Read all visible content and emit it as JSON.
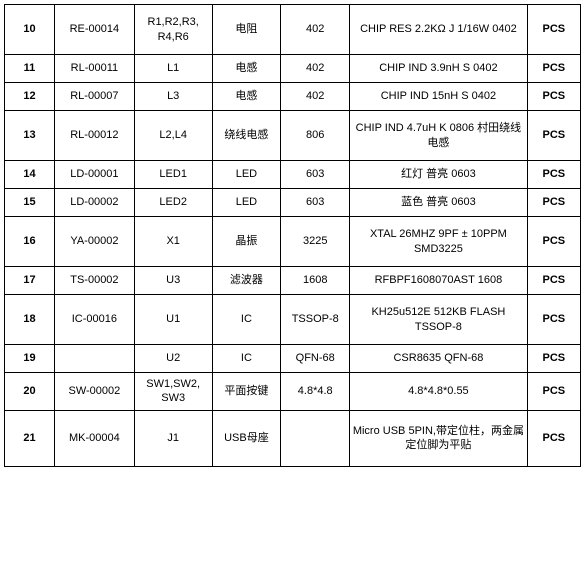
{
  "table": {
    "columns": [
      {
        "key": "idx",
        "class": "col-idx"
      },
      {
        "key": "partno",
        "class": "col-partno"
      },
      {
        "key": "ref",
        "class": "col-ref"
      },
      {
        "key": "type",
        "class": "col-type"
      },
      {
        "key": "pkg",
        "class": "col-pkg"
      },
      {
        "key": "desc",
        "class": "col-desc"
      },
      {
        "key": "unit",
        "class": "col-unit"
      }
    ],
    "rows": [
      {
        "height": "row-tall",
        "idx": "10",
        "partno": "RE-00014",
        "ref": "R1,R2,R3,\nR4,R6",
        "type": "电阻",
        "pkg": "402",
        "desc": "CHIP RES 2.2KΩ J 1/16W 0402",
        "unit": "PCS"
      },
      {
        "height": "row-short",
        "idx": "11",
        "partno": "RL-00011",
        "ref": "L1",
        "type": "电感",
        "pkg": "402",
        "desc": "CHIP IND 3.9nH S 0402",
        "unit": "PCS"
      },
      {
        "height": "row-short",
        "idx": "12",
        "partno": "RL-00007",
        "ref": "L3",
        "type": "电感",
        "pkg": "402",
        "desc": "CHIP IND 15nH S 0402",
        "unit": "PCS"
      },
      {
        "height": "row-tall",
        "idx": "13",
        "partno": "RL-00012",
        "ref": "L2,L4",
        "type": "绕线电感",
        "pkg": "806",
        "desc": "CHIP IND 4.7uH K 0806 村田绕线电感",
        "unit": "PCS"
      },
      {
        "height": "row-short",
        "idx": "14",
        "partno": "LD-00001",
        "ref": "LED1",
        "type": "LED",
        "pkg": "603",
        "desc": "红灯   普亮   0603",
        "unit": "PCS"
      },
      {
        "height": "row-short",
        "idx": "15",
        "partno": "LD-00002",
        "ref": "LED2",
        "type": "LED",
        "pkg": "603",
        "desc": "蓝色   普亮   0603",
        "unit": "PCS"
      },
      {
        "height": "row-tall",
        "idx": "16",
        "partno": "YA-00002",
        "ref": "X1",
        "type": "晶振",
        "pkg": "3225",
        "desc": "XTAL 26MHZ 9PF ± 10PPM  SMD3225",
        "unit": "PCS"
      },
      {
        "height": "row-short",
        "idx": "17",
        "partno": "TS-00002",
        "ref": "U3",
        "type": "滤波器",
        "pkg": "1608",
        "desc": "RFBPF1608070AST 1608",
        "unit": "PCS"
      },
      {
        "height": "row-tall",
        "idx": "18",
        "partno": "IC-00016",
        "ref": "U1",
        "type": "IC",
        "pkg": "TSSOP-8",
        "desc": "KH25u512E 512KB FLASH  TSSOP-8",
        "unit": "PCS"
      },
      {
        "height": "row-short",
        "idx": "19",
        "partno": "",
        "ref": "U2",
        "type": "IC",
        "pkg": "QFN-68",
        "desc": "CSR8635  QFN-68",
        "unit": "PCS"
      },
      {
        "height": "row-short",
        "idx": "20",
        "partno": "SW-00002",
        "ref": "SW1,SW2,\nSW3",
        "type": "平面按键",
        "pkg": "4.8*4.8",
        "desc": "4.8*4.8*0.55",
        "unit": "PCS"
      },
      {
        "height": "row-xtall",
        "idx": "21",
        "partno": "MK-00004",
        "ref": "J1",
        "type": "USB母座",
        "pkg": "",
        "desc": "Micro USB 5PIN,带定位柱，两金属定位脚为平贴",
        "unit": "PCS"
      }
    ]
  },
  "style": {
    "border_color": "#000000",
    "background_color": "#ffffff",
    "font_size": 11,
    "idx_bold": true,
    "unit_bold": true
  }
}
